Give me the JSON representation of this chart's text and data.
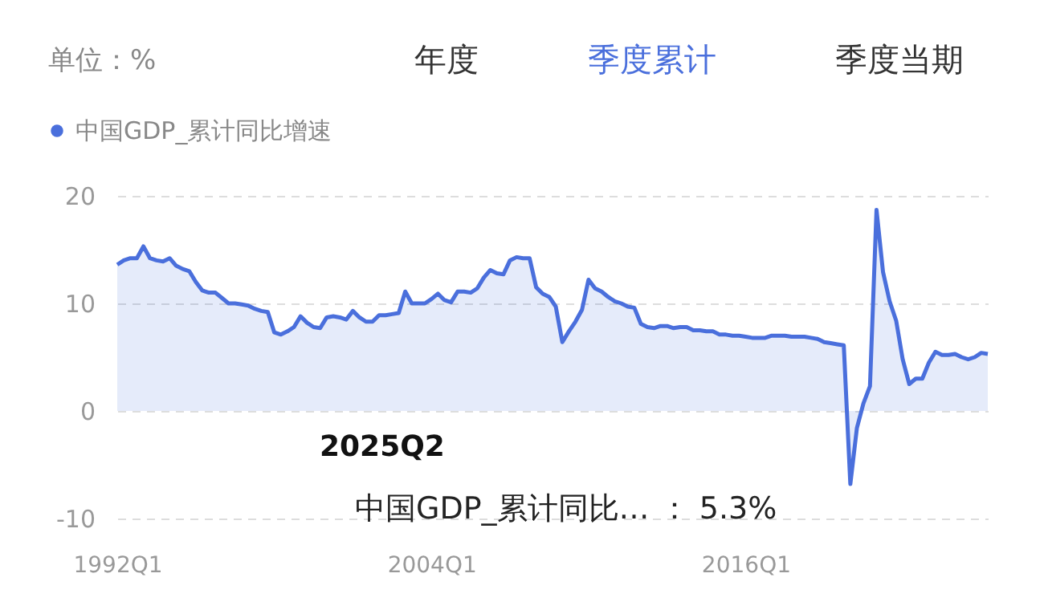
{
  "chart_data": {
    "type": "area",
    "annotations": [
      "单位：%",
      "年度",
      "季度累计",
      "季度当期",
      "2025Q2",
      "中国GDP_累计同比…  ：  5.3%"
    ],
    "categories": [
      "1992Q1",
      null,
      null,
      null,
      null,
      null,
      null,
      null,
      null,
      null,
      null,
      null,
      null,
      null,
      null,
      null,
      null,
      null,
      null,
      null,
      null,
      null,
      null,
      null,
      null,
      null,
      null,
      null,
      null,
      null,
      null,
      null,
      null,
      null,
      null,
      null,
      null,
      null,
      null,
      null,
      null,
      null,
      null,
      null,
      null,
      null,
      null,
      null,
      "2004Q1",
      null,
      null,
      null,
      null,
      null,
      null,
      null,
      null,
      null,
      null,
      null,
      null,
      null,
      null,
      null,
      null,
      null,
      null,
      null,
      null,
      null,
      null,
      null,
      null,
      null,
      null,
      null,
      null,
      null,
      null,
      null,
      null,
      null,
      null,
      null,
      null,
      null,
      null,
      null,
      null,
      null,
      null,
      null,
      null,
      null,
      null,
      null,
      "2016Q1",
      null,
      null,
      null,
      null,
      null,
      null,
      null,
      null,
      null,
      null,
      null,
      null,
      null,
      null,
      null,
      null,
      null,
      null,
      null,
      null,
      null,
      null,
      null,
      null,
      null,
      null,
      null,
      null,
      null,
      null,
      null,
      null,
      null,
      null,
      null,
      null,
      null
    ],
    "ylim": [
      -10,
      20
    ],
    "yticks": [
      -10,
      0,
      10,
      20
    ],
    "series": [
      {
        "name": "中国GDP_累计同比增速",
        "color": "#4a6fdc",
        "values": [
          13.6,
          14.0,
          14.2,
          14.2,
          15.3,
          14.2,
          14.0,
          13.9,
          14.2,
          13.5,
          13.2,
          13.0,
          12.0,
          11.2,
          11.0,
          11.0,
          10.5,
          10.0,
          10.0,
          9.9,
          9.8,
          9.5,
          9.3,
          9.2,
          7.3,
          7.1,
          7.4,
          7.8,
          8.8,
          8.2,
          7.8,
          7.7,
          8.7,
          8.8,
          8.7,
          8.5,
          9.3,
          8.7,
          8.3,
          8.3,
          8.9,
          8.9,
          9.0,
          9.1,
          11.1,
          10.0,
          10.0,
          10.0,
          10.4,
          10.9,
          10.3,
          10.1,
          11.1,
          11.1,
          11.0,
          11.4,
          12.4,
          13.1,
          12.8,
          12.7,
          14.0,
          14.3,
          14.2,
          14.2,
          11.5,
          10.9,
          10.6,
          9.7,
          6.4,
          7.4,
          8.3,
          9.4,
          12.2,
          11.4,
          11.1,
          10.6,
          10.2,
          10.0,
          9.7,
          9.6,
          8.1,
          7.8,
          7.7,
          7.9,
          7.9,
          7.7,
          7.8,
          7.8,
          7.5,
          7.5,
          7.4,
          7.4,
          7.1,
          7.1,
          7.0,
          7.0,
          6.9,
          6.8,
          6.8,
          6.8,
          7.0,
          7.0,
          7.0,
          6.9,
          6.9,
          6.9,
          6.8,
          6.7,
          6.4,
          6.3,
          6.2,
          6.1,
          -6.8,
          -1.6,
          0.7,
          2.3,
          18.7,
          12.9,
          10.2,
          8.4,
          4.8,
          2.5,
          3.0,
          3.0,
          4.5,
          5.5,
          5.2,
          5.2,
          5.3,
          5.0,
          4.8,
          5.0,
          5.4,
          5.3
        ]
      }
    ],
    "grid": "y",
    "legend": "top left",
    "marker": "none",
    "line_style": "solid"
  }
}
